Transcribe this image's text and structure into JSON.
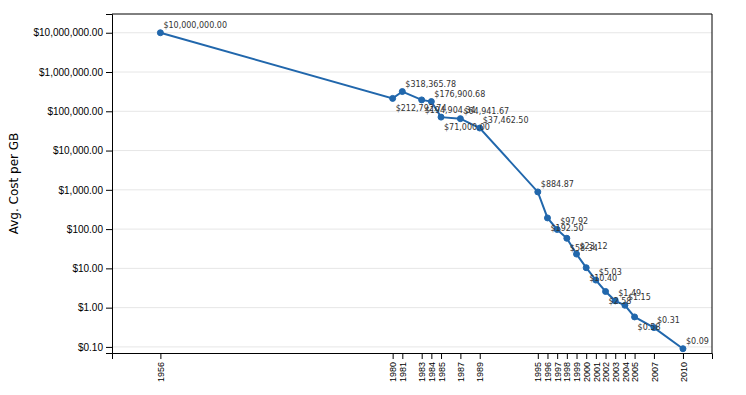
{
  "chart_data": {
    "type": "line",
    "ylabel": "Avg. Cost per GB",
    "x": [
      1956,
      1980,
      1981,
      1983,
      1984,
      1985,
      1987,
      1989,
      1995,
      1996,
      1997,
      1998,
      1999,
      2000,
      2001,
      2002,
      2003,
      2004,
      2005,
      2007,
      2010
    ],
    "values": [
      10000000.0,
      212792.74,
      318365.78,
      194904.34,
      176900.68,
      71000.0,
      64941.67,
      37462.5,
      884.87,
      192.5,
      97.92,
      58.34,
      23.12,
      10.4,
      5.03,
      2.58,
      1.49,
      1.15,
      0.58,
      0.31,
      0.09
    ],
    "value_labels": [
      "$10,000,000.00",
      "$212,792.74",
      "$318,365.78",
      "$194,904.34",
      "$176,900.68",
      "$71,000.00",
      "$64,941.67",
      "$37,462.50",
      "$884.87",
      "$192.50",
      "$97.92",
      "$58.34",
      "$23.12",
      "$10.40",
      "$5.03",
      "$2.58",
      "$1.49",
      "$1.15",
      "$0.58",
      "$0.31",
      "$0.09"
    ],
    "color": "#2167ac",
    "marker": "circle",
    "data_labels": true,
    "log": "y",
    "grid": "y",
    "xlim": [
      1951,
      2013
    ],
    "xticks": [
      1956,
      1980,
      1981,
      1983,
      1984,
      1985,
      1987,
      1989,
      1995,
      1996,
      1997,
      1998,
      1999,
      2000,
      2001,
      2002,
      2003,
      2004,
      2005,
      2007,
      2010
    ],
    "ylim": [
      0.07,
      30000000
    ],
    "yticks": [
      {
        "value": 0.1,
        "label": "$0.10"
      },
      {
        "value": 1,
        "label": "$1.00"
      },
      {
        "value": 10,
        "label": "$10.00"
      },
      {
        "value": 100,
        "label": "$100.00"
      },
      {
        "value": 1000,
        "label": "$1,000.00"
      },
      {
        "value": 10000,
        "label": "$10,000.00"
      },
      {
        "value": 100000,
        "label": "$100,000.00"
      },
      {
        "value": 1000000,
        "label": "$1,000,000.00"
      },
      {
        "value": 10000000,
        "label": "$10,000,000.00"
      }
    ]
  }
}
